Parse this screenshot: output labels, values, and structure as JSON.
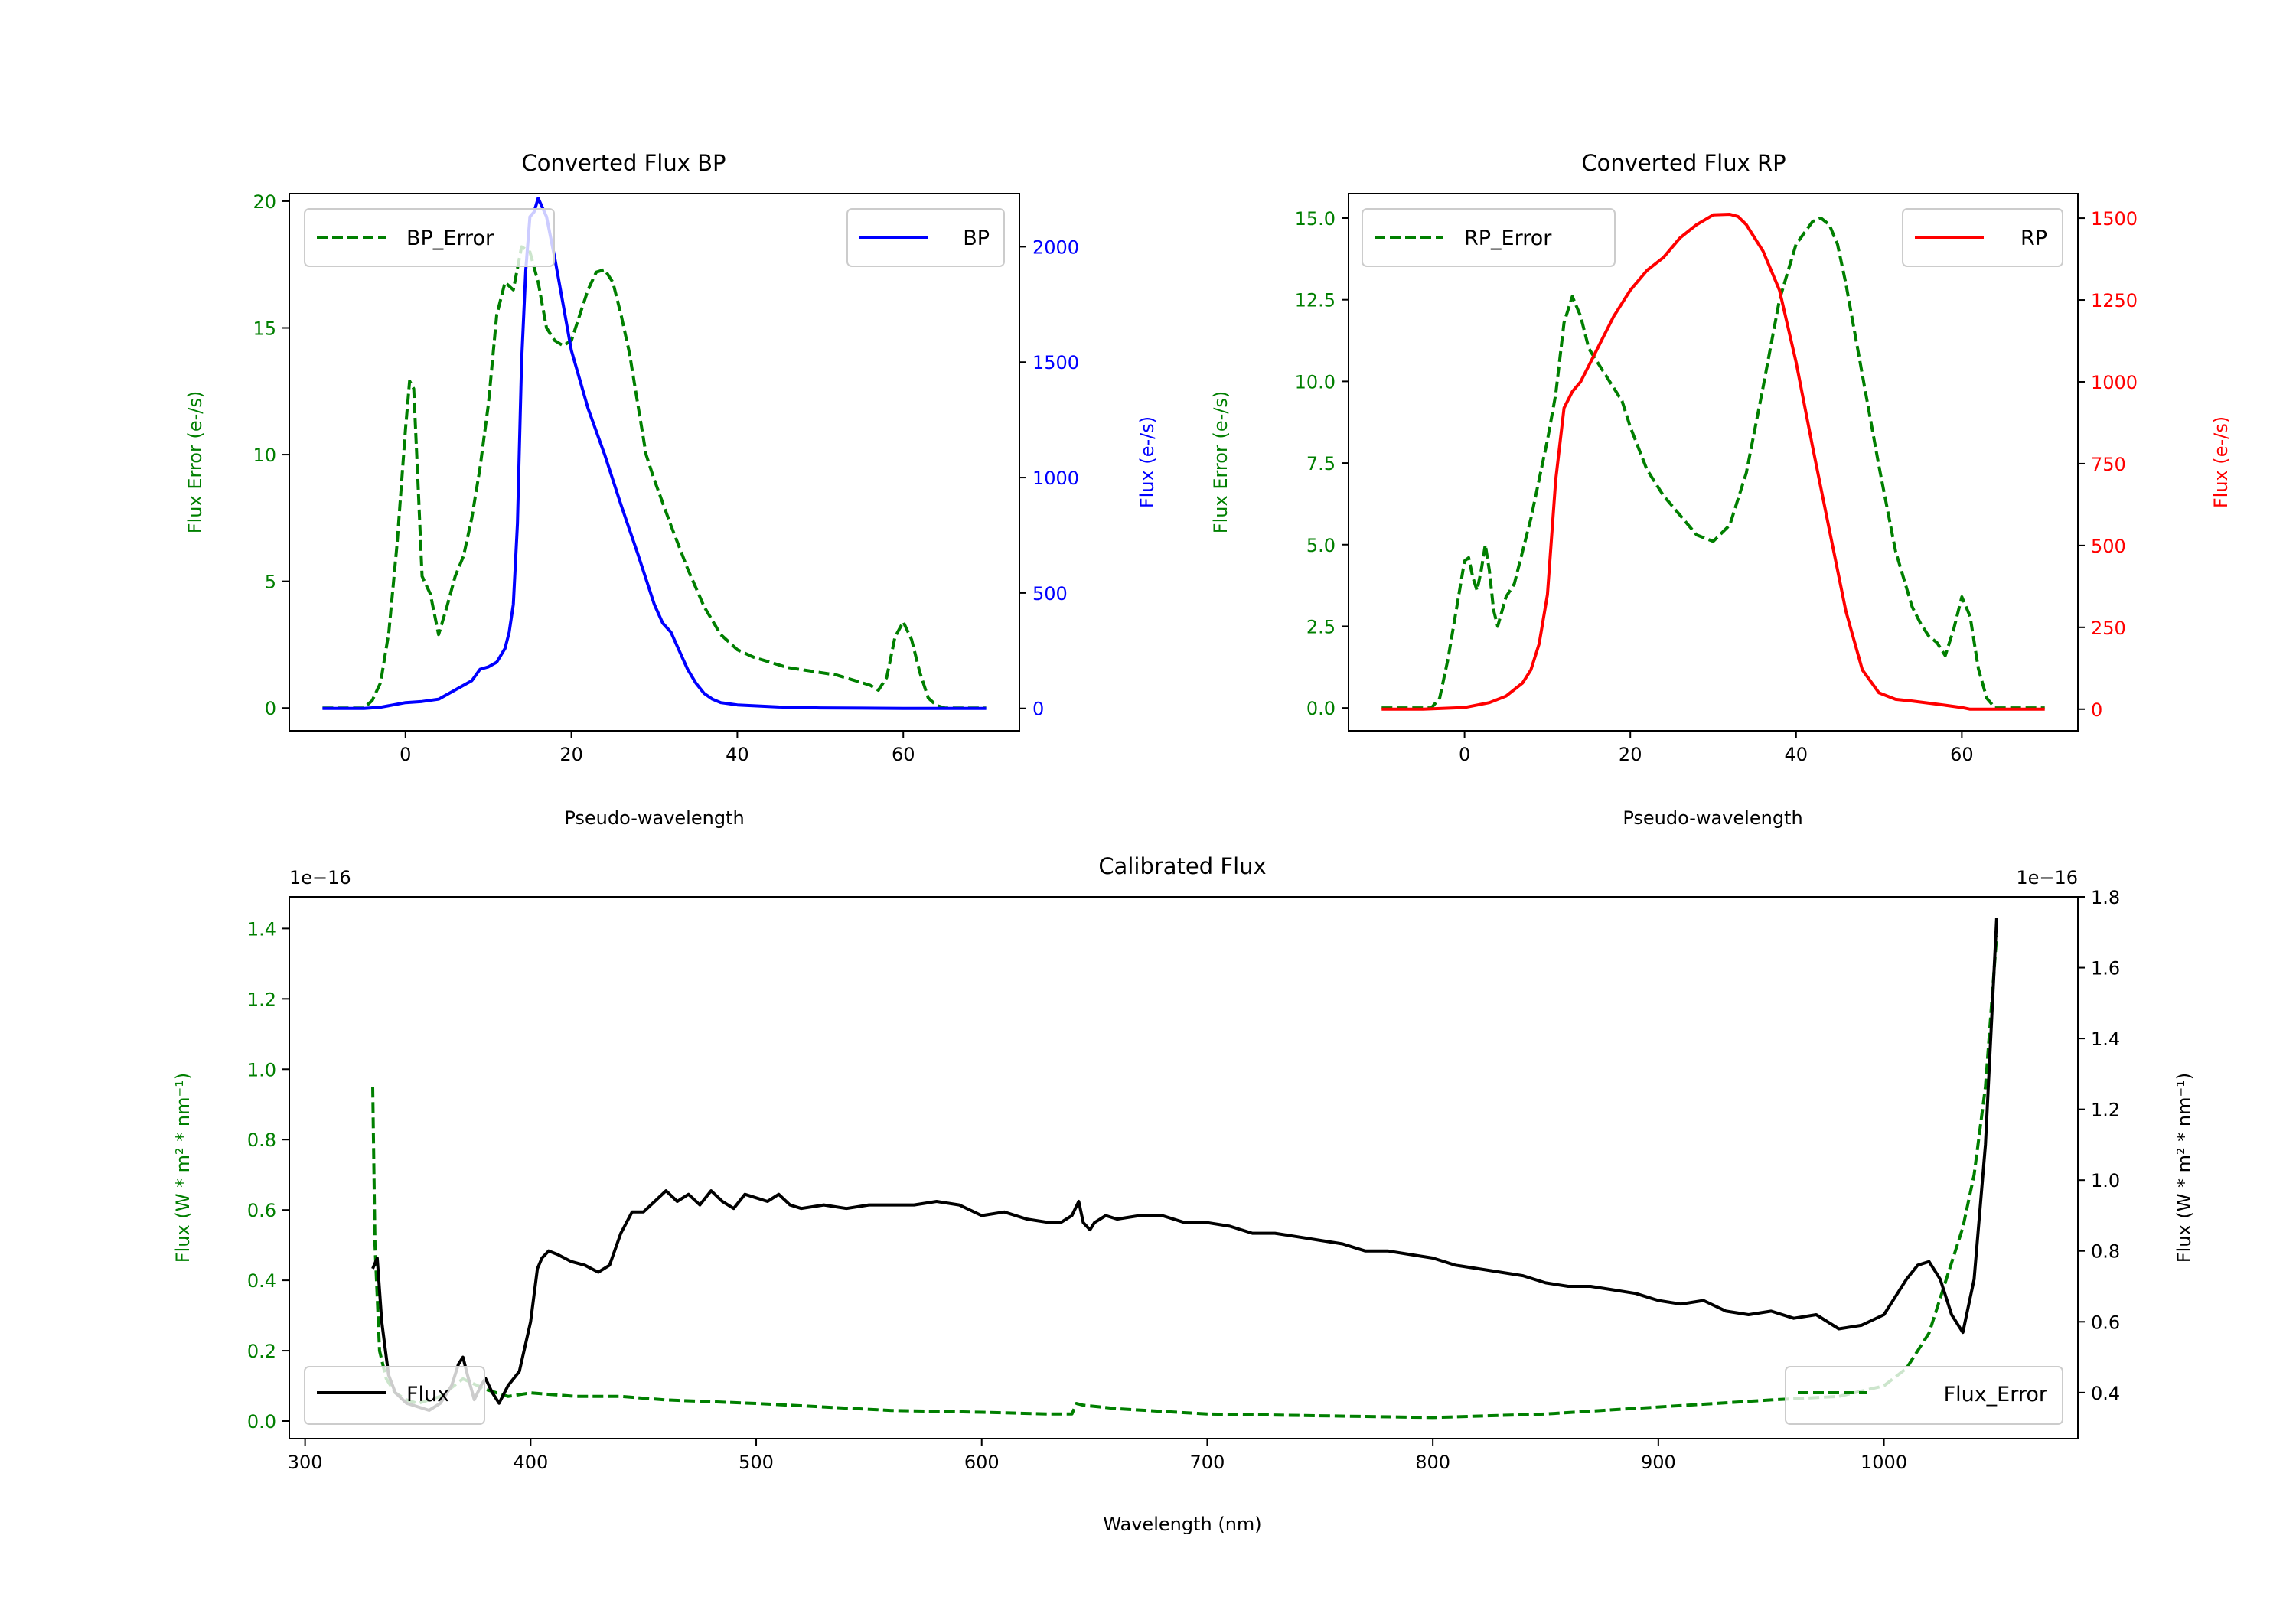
{
  "colors": {
    "green": "#007f00",
    "blue": "#0000ff",
    "red": "#ff0000",
    "black": "#000000"
  },
  "chart_data": [
    {
      "type": "line",
      "id": "bp",
      "title": "Converted Flux BP",
      "xlabel": "Pseudo-wavelength",
      "ylabel_left": "Flux Error (e-/s)",
      "ylabel_right": "Flux (e-/s)",
      "xlim": [
        -14,
        74
      ],
      "xticks": [
        0,
        20,
        40,
        60
      ],
      "xtick_labels": [
        "0",
        "20",
        "40",
        "60"
      ],
      "ylim_left": [
        -0.9,
        20.3
      ],
      "yticks_left": [
        0,
        5,
        10,
        15,
        20
      ],
      "ytick_labels_left": [
        "0",
        "5",
        "10",
        "15",
        "20"
      ],
      "ylim_right": [
        -97,
        2230
      ],
      "yticks_right": [
        0,
        500,
        1000,
        1500,
        2000
      ],
      "ytick_labels_right": [
        "0",
        "500",
        "1000",
        "1500",
        "2000"
      ],
      "legend_left": "BP_Error",
      "legend_right": "BP",
      "series": [
        {
          "name": "BP_Error",
          "axis": "left",
          "style": "dashed",
          "color": "green",
          "x": [
            -10,
            -5,
            -4,
            -3,
            -2,
            -1,
            0,
            0.5,
            1,
            1.5,
            2,
            3,
            4,
            5,
            6,
            7,
            8,
            9,
            10,
            11,
            12,
            13,
            14,
            15,
            16,
            17,
            18,
            19,
            20,
            21,
            22,
            23,
            24,
            25,
            26,
            27,
            28,
            29,
            30,
            32,
            34,
            36,
            38,
            40,
            42,
            44,
            46,
            48,
            50,
            52,
            54,
            56,
            57,
            58,
            59,
            60,
            61,
            62,
            63,
            64,
            65,
            70
          ],
          "y": [
            0,
            0,
            0.3,
            1,
            3,
            6.5,
            11,
            12.9,
            12.6,
            9,
            5.2,
            4.5,
            2.9,
            4,
            5.2,
            6,
            7.5,
            9.5,
            12,
            15.5,
            16.8,
            16.5,
            18.2,
            18,
            16.8,
            15,
            14.5,
            14.3,
            14.5,
            15.5,
            16.5,
            17.2,
            17.3,
            16.8,
            15.5,
            14,
            12,
            10,
            9,
            7.2,
            5.5,
            4,
            2.9,
            2.3,
            2,
            1.8,
            1.6,
            1.5,
            1.4,
            1.3,
            1.1,
            0.9,
            0.7,
            1.2,
            2.8,
            3.4,
            2.7,
            1.4,
            0.4,
            0.1,
            0,
            0
          ]
        },
        {
          "name": "BP",
          "axis": "right",
          "style": "solid",
          "color": "blue",
          "x": [
            -10,
            -5,
            -3,
            0,
            2,
            4,
            6,
            8,
            9,
            10,
            11,
            12,
            12.5,
            13,
            13.5,
            14,
            14.5,
            15,
            15.5,
            16,
            16.5,
            17,
            18,
            19,
            20,
            22,
            24,
            26,
            28,
            30,
            31,
            32,
            33,
            34,
            35,
            36,
            37,
            38,
            40,
            45,
            50,
            55,
            60,
            70
          ],
          "y": [
            0,
            0,
            5,
            25,
            30,
            40,
            80,
            120,
            170,
            180,
            200,
            260,
            330,
            450,
            800,
            1500,
            1900,
            2130,
            2150,
            2210,
            2170,
            2130,
            1950,
            1750,
            1550,
            1300,
            1100,
            880,
            670,
            450,
            370,
            330,
            250,
            170,
            110,
            65,
            40,
            25,
            15,
            6,
            2,
            1,
            0,
            0
          ]
        }
      ]
    },
    {
      "type": "line",
      "id": "rp",
      "title": "Converted Flux RP",
      "xlabel": "Pseudo-wavelength",
      "ylabel_left": "Flux Error (e-/s)",
      "ylabel_right": "Flux (e-/s)",
      "xlim": [
        -14,
        74
      ],
      "xticks": [
        0,
        20,
        40,
        60
      ],
      "xtick_labels": [
        "0",
        "20",
        "40",
        "60"
      ],
      "ylim_left": [
        -0.7,
        15.75
      ],
      "yticks_left": [
        0,
        2.5,
        5,
        7.5,
        10,
        12.5,
        15
      ],
      "ytick_labels_left": [
        "0.0",
        "2.5",
        "5.0",
        "7.5",
        "10.0",
        "12.5",
        "15.0"
      ],
      "ylim_right": [
        -66,
        1575
      ],
      "yticks_right": [
        0,
        250,
        500,
        750,
        1000,
        1250,
        1500
      ],
      "ytick_labels_right": [
        "0",
        "250",
        "500",
        "750",
        "1000",
        "1250",
        "1500"
      ],
      "legend_left": "RP_Error",
      "legend_right": "RP",
      "series": [
        {
          "name": "RP_Error",
          "axis": "left",
          "style": "dashed",
          "color": "green",
          "x": [
            -10,
            -4,
            -3,
            -2,
            -1,
            0,
            0.5,
            1,
            1.5,
            2,
            2.5,
            3,
            3.5,
            4,
            5,
            6,
            8,
            10,
            11,
            12,
            13,
            14,
            15,
            16,
            17,
            18,
            19,
            20,
            22,
            24,
            26,
            28,
            30,
            32,
            34,
            36,
            38,
            40,
            42,
            43,
            44,
            45,
            46,
            48,
            50,
            52,
            54,
            55,
            56,
            57,
            58,
            59,
            60,
            61,
            62,
            63,
            64,
            70
          ],
          "y": [
            0,
            0,
            0.3,
            1.5,
            3,
            4.5,
            4.6,
            4,
            3.6,
            4.2,
            5,
            4.2,
            3,
            2.5,
            3.4,
            3.8,
            5.8,
            8.2,
            9.6,
            11.8,
            12.6,
            12,
            11,
            10.6,
            10.2,
            9.8,
            9.4,
            8.6,
            7.3,
            6.5,
            5.9,
            5.3,
            5.1,
            5.6,
            7.2,
            9.8,
            12.5,
            14.2,
            14.9,
            15,
            14.8,
            14.2,
            13,
            10.2,
            7.4,
            4.8,
            3.1,
            2.6,
            2.2,
            2,
            1.6,
            2.4,
            3.4,
            2.8,
            1.2,
            0.3,
            0,
            0
          ]
        },
        {
          "name": "RP",
          "axis": "right",
          "style": "solid",
          "color": "red",
          "x": [
            -10,
            -5,
            0,
            3,
            5,
            7,
            8,
            9,
            10,
            11,
            12,
            13,
            14,
            15,
            16,
            18,
            20,
            22,
            24,
            26,
            28,
            30,
            32,
            33,
            34,
            35,
            36,
            38,
            40,
            42,
            44,
            46,
            48,
            50,
            52,
            54,
            58,
            60,
            61,
            63,
            70
          ],
          "y": [
            0,
            0,
            5,
            20,
            40,
            80,
            120,
            200,
            350,
            700,
            920,
            970,
            1000,
            1050,
            1100,
            1200,
            1280,
            1340,
            1380,
            1440,
            1480,
            1510,
            1512,
            1505,
            1480,
            1440,
            1400,
            1280,
            1060,
            800,
            550,
            300,
            120,
            50,
            30,
            25,
            12,
            5,
            0,
            0,
            0
          ]
        }
      ]
    },
    {
      "type": "line",
      "id": "cal",
      "title": "Calibrated Flux",
      "xlabel": "Wavelength (nm)",
      "ylabel_left": "Flux (W * m² * nm⁻¹)",
      "ylabel_right": "Flux (W * m² * nm⁻¹)",
      "offset_left": "1e−16",
      "offset_right": "1e−16",
      "xlim": [
        293,
        1086
      ],
      "xticks": [
        300,
        400,
        500,
        600,
        700,
        800,
        900,
        1000
      ],
      "xtick_labels": [
        "300",
        "400",
        "500",
        "600",
        "700",
        "800",
        "900",
        "1000"
      ],
      "ylim_left": [
        -0.05,
        1.49
      ],
      "yticks_left": [
        0,
        0.2,
        0.4,
        0.6,
        0.8,
        1.0,
        1.2,
        1.4
      ],
      "ytick_labels_left": [
        "0.0",
        "0.2",
        "0.4",
        "0.6",
        "0.8",
        "1.0",
        "1.2",
        "1.4"
      ],
      "ylim_right": [
        0.27,
        1.8
      ],
      "yticks_right": [
        0.4,
        0.6,
        0.8,
        1.0,
        1.2,
        1.4,
        1.6,
        1.8
      ],
      "ytick_labels_right": [
        "0.4",
        "0.6",
        "0.8",
        "1.0",
        "1.2",
        "1.4",
        "1.6",
        "1.8"
      ],
      "legend_left": "Flux",
      "legend_right": "Flux_Error",
      "series": [
        {
          "name": "Flux_Error",
          "axis": "left",
          "style": "dashed",
          "color": "green",
          "x": [
            330,
            331,
            333,
            336,
            340,
            345,
            350,
            355,
            360,
            370,
            380,
            390,
            400,
            420,
            440,
            460,
            500,
            560,
            600,
            630,
            640,
            642,
            645,
            660,
            700,
            750,
            800,
            850,
            900,
            950,
            980,
            1000,
            1010,
            1020,
            1030,
            1035,
            1040,
            1045,
            1050
          ],
          "y": [
            0.95,
            0.5,
            0.2,
            0.12,
            0.08,
            0.06,
            0.05,
            0.06,
            0.07,
            0.12,
            0.09,
            0.07,
            0.08,
            0.07,
            0.07,
            0.06,
            0.05,
            0.03,
            0.025,
            0.02,
            0.02,
            0.05,
            0.045,
            0.035,
            0.02,
            0.015,
            0.01,
            0.02,
            0.04,
            0.06,
            0.07,
            0.1,
            0.15,
            0.25,
            0.45,
            0.55,
            0.7,
            0.95,
            1.38
          ]
        },
        {
          "name": "Flux",
          "axis": "right",
          "style": "solid",
          "color": "black",
          "x": [
            330,
            332,
            334,
            337,
            340,
            345,
            350,
            355,
            360,
            365,
            368,
            370,
            372,
            375,
            378,
            380,
            383,
            386,
            390,
            395,
            400,
            403,
            405,
            408,
            412,
            418,
            424,
            430,
            435,
            440,
            445,
            450,
            455,
            460,
            465,
            470,
            475,
            480,
            485,
            490,
            495,
            500,
            505,
            510,
            515,
            520,
            530,
            540,
            550,
            560,
            570,
            580,
            590,
            600,
            610,
            620,
            630,
            635,
            640,
            643,
            645,
            648,
            650,
            655,
            660,
            670,
            680,
            690,
            700,
            710,
            720,
            730,
            740,
            750,
            760,
            770,
            780,
            790,
            800,
            810,
            820,
            830,
            840,
            850,
            860,
            870,
            880,
            890,
            900,
            910,
            920,
            930,
            940,
            950,
            960,
            970,
            980,
            990,
            1000,
            1005,
            1010,
            1015,
            1020,
            1025,
            1030,
            1035,
            1040,
            1045,
            1050
          ],
          "y": [
            0.75,
            0.78,
            0.6,
            0.45,
            0.4,
            0.37,
            0.36,
            0.35,
            0.37,
            0.42,
            0.48,
            0.5,
            0.45,
            0.38,
            0.42,
            0.44,
            0.4,
            0.37,
            0.42,
            0.46,
            0.6,
            0.75,
            0.78,
            0.8,
            0.79,
            0.77,
            0.76,
            0.74,
            0.76,
            0.85,
            0.91,
            0.91,
            0.94,
            0.97,
            0.94,
            0.96,
            0.93,
            0.97,
            0.94,
            0.92,
            0.96,
            0.95,
            0.94,
            0.96,
            0.93,
            0.92,
            0.93,
            0.92,
            0.93,
            0.93,
            0.93,
            0.94,
            0.93,
            0.9,
            0.91,
            0.89,
            0.88,
            0.88,
            0.9,
            0.94,
            0.88,
            0.86,
            0.88,
            0.9,
            0.89,
            0.9,
            0.9,
            0.88,
            0.88,
            0.87,
            0.85,
            0.85,
            0.84,
            0.83,
            0.82,
            0.8,
            0.8,
            0.79,
            0.78,
            0.76,
            0.75,
            0.74,
            0.73,
            0.71,
            0.7,
            0.7,
            0.69,
            0.68,
            0.66,
            0.65,
            0.66,
            0.63,
            0.62,
            0.63,
            0.61,
            0.62,
            0.58,
            0.59,
            0.62,
            0.67,
            0.72,
            0.76,
            0.77,
            0.72,
            0.62,
            0.57,
            0.72,
            1.1,
            1.74
          ]
        }
      ]
    }
  ]
}
